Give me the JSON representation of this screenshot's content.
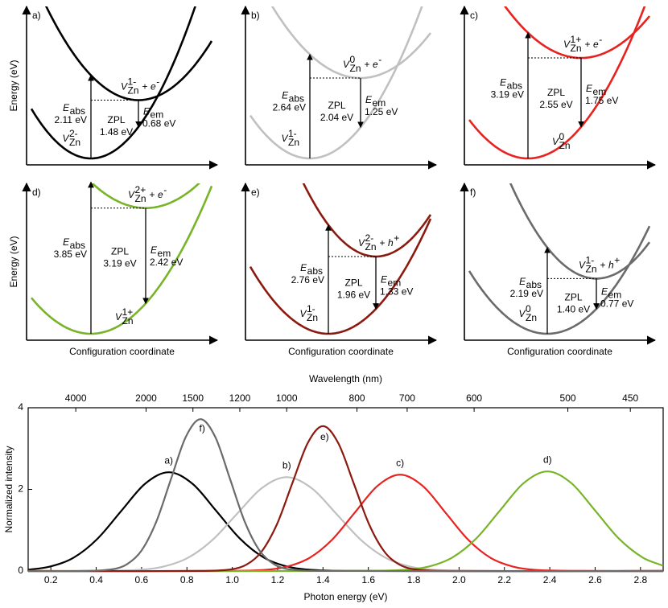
{
  "panels": [
    {
      "label": "a)",
      "color": "#000000",
      "y_label": "Energy (eV)",
      "ground": {
        "symbol": "V",
        "sub": "Zn",
        "sup": "2-"
      },
      "excited": {
        "symbol": "V",
        "sub": "Zn",
        "sup": "1-",
        "plus": "+",
        "carrier": "e",
        "carrier_sup": "-"
      },
      "abs": {
        "symbol": "E",
        "sub": "abs",
        "value": 2.11,
        "label": "2.11 eV"
      },
      "zpl": {
        "symbol": "ZPL",
        "value": 1.48,
        "label": "1.48 eV"
      },
      "em": {
        "symbol": "E",
        "sub": "em",
        "value": 0.68,
        "label": "0.68 eV"
      }
    },
    {
      "label": "b)",
      "color": "#c0c0c0",
      "ground": {
        "symbol": "V",
        "sub": "Zn",
        "sup": "1-"
      },
      "excited": {
        "symbol": "V",
        "sub": "Zn",
        "sup": "0",
        "plus": "+",
        "carrier": "e",
        "carrier_sup": "-"
      },
      "abs": {
        "symbol": "E",
        "sub": "abs",
        "value": 2.64,
        "label": "2.64 eV"
      },
      "zpl": {
        "symbol": "ZPL",
        "value": 2.04,
        "label": "2.04 eV"
      },
      "em": {
        "symbol": "E",
        "sub": "em",
        "value": 1.25,
        "label": "1.25 eV"
      }
    },
    {
      "label": "c)",
      "color": "#e8221e",
      "ground": {
        "symbol": "V",
        "sub": "Zn",
        "sup": "0"
      },
      "excited": {
        "symbol": "V",
        "sub": "Zn",
        "sup": "1+",
        "plus": "+",
        "carrier": "e",
        "carrier_sup": "-"
      },
      "abs": {
        "symbol": "E",
        "sub": "abs",
        "value": 3.19,
        "label": "3.19 eV"
      },
      "zpl": {
        "symbol": "ZPL",
        "value": 2.55,
        "label": "2.55 eV"
      },
      "em": {
        "symbol": "E",
        "sub": "em",
        "value": 1.75,
        "label": "1.75 eV"
      }
    },
    {
      "label": "d)",
      "color": "#78b428",
      "y_label": "Energy (eV)",
      "x_label": "Configuration coordinate",
      "ground": {
        "symbol": "V",
        "sub": "Zn",
        "sup": "1+"
      },
      "excited": {
        "symbol": "V",
        "sub": "Zn",
        "sup": "2+",
        "plus": "+",
        "carrier": "e",
        "carrier_sup": "-"
      },
      "abs": {
        "symbol": "E",
        "sub": "abs",
        "value": 3.85,
        "label": "3.85 eV"
      },
      "zpl": {
        "symbol": "ZPL",
        "value": 3.19,
        "label": "3.19 eV"
      },
      "em": {
        "symbol": "E",
        "sub": "em",
        "value": 2.42,
        "label": "2.42 eV"
      }
    },
    {
      "label": "e)",
      "color": "#8b1a10",
      "x_label": "Configuration coordinate",
      "ground": {
        "symbol": "V",
        "sub": "Zn",
        "sup": "1-"
      },
      "excited": {
        "symbol": "V",
        "sub": "Zn",
        "sup": "2-",
        "plus": "+",
        "carrier": "h",
        "carrier_sup": "+"
      },
      "abs": {
        "symbol": "E",
        "sub": "abs",
        "value": 2.76,
        "label": "2.76 eV"
      },
      "zpl": {
        "symbol": "ZPL",
        "value": 1.96,
        "label": "1.96 eV"
      },
      "em": {
        "symbol": "E",
        "sub": "em",
        "value": 1.33,
        "label": "1.33 eV"
      }
    },
    {
      "label": "f)",
      "color": "#6b6b6b",
      "x_label": "Configuration coordinate",
      "ground": {
        "symbol": "V",
        "sub": "Zn",
        "sup": "0"
      },
      "excited": {
        "symbol": "V",
        "sub": "Zn",
        "sup": "1-",
        "plus": "+",
        "carrier": "h",
        "carrier_sup": "+"
      },
      "abs": {
        "symbol": "E",
        "sub": "abs",
        "value": 2.19,
        "label": "2.19 eV"
      },
      "zpl": {
        "symbol": "ZPL",
        "value": 1.4,
        "label": "1.40 eV"
      },
      "em": {
        "symbol": "E",
        "sub": "em",
        "value": 0.77,
        "label": "0.77 eV"
      }
    }
  ],
  "chart_data": {
    "type": "line",
    "x_label": "Photon energy (eV)",
    "y_label": "Normalized intensity",
    "x2_label": "Wavelength (nm)",
    "xlim": [
      0.1,
      2.9
    ],
    "ylim": [
      0,
      4
    ],
    "xticks": [
      0.2,
      0.4,
      0.6,
      0.8,
      {
        "value": 1,
        "label": "1.0"
      },
      1.2,
      1.4,
      1.6,
      1.8,
      {
        "value": 2,
        "label": "2.0"
      },
      2.2,
      2.4,
      2.6,
      2.8
    ],
    "yticks": [
      0,
      2,
      4
    ],
    "x2ticks": [
      4000,
      2000,
      1500,
      1200,
      1000,
      800,
      700,
      600,
      500,
      450
    ],
    "series": [
      {
        "name": "a)",
        "color": "#000000",
        "x": [
          0.1,
          0.195,
          0.3,
          0.405,
          0.51,
          0.615,
          0.72,
          0.825,
          0.93,
          1.035,
          1.14,
          1.245,
          1.35,
          1.56,
          2.9
        ],
        "values": [
          0.031,
          0.106,
          0.327,
          0.786,
          1.468,
          2.136,
          2.42,
          2.136,
          1.468,
          0.786,
          0.327,
          0.106,
          0.027,
          0.001,
          0
        ]
      },
      {
        "name": "b)",
        "color": "#c0c0c0",
        "x": [
          0.1,
          0.36,
          0.58,
          0.69,
          0.8,
          0.91,
          1.02,
          1.13,
          1.24,
          1.35,
          1.46,
          1.57,
          1.68,
          1.79,
          1.9,
          2.12,
          2.9
        ],
        "values": [
          0,
          0.001,
          0.026,
          0.101,
          0.311,
          0.747,
          1.395,
          2.03,
          2.3,
          2.03,
          1.395,
          0.747,
          0.311,
          0.101,
          0.026,
          0.001,
          0
        ]
      },
      {
        "name": "c)",
        "color": "#e8221e",
        "x": [
          0.1,
          0.94,
          1.14,
          1.24,
          1.34,
          1.44,
          1.54,
          1.64,
          1.74,
          1.84,
          1.94,
          2.04,
          2.14,
          2.24,
          2.34,
          2.54,
          2.9
        ],
        "values": [
          0,
          0.001,
          0.026,
          0.104,
          0.319,
          0.766,
          1.431,
          2.083,
          2.36,
          2.083,
          1.431,
          0.766,
          0.319,
          0.104,
          0.026,
          0.001,
          0
        ]
      },
      {
        "name": "d)",
        "color": "#78b428",
        "x": [
          0.1,
          1.55,
          1.76,
          1.865,
          1.97,
          2.075,
          2.18,
          2.285,
          2.39,
          2.495,
          2.6,
          2.705,
          2.81,
          2.9
        ],
        "values": [
          0,
          0.001,
          0.027,
          0.107,
          0.33,
          0.792,
          1.48,
          2.153,
          2.44,
          2.153,
          1.48,
          0.792,
          0.33,
          0.128
        ]
      },
      {
        "name": "e)",
        "color": "#8b1a10",
        "x": [
          0.1,
          0.86,
          0.995,
          1.0625,
          1.13,
          1.1975,
          1.265,
          1.3325,
          1.4,
          1.4675,
          1.535,
          1.6025,
          1.67,
          1.7375,
          1.805,
          1.94,
          2.9
        ],
        "values": [
          0,
          0.001,
          0.039,
          0.156,
          0.48,
          1.153,
          2.153,
          3.133,
          3.55,
          3.133,
          2.153,
          1.153,
          0.48,
          0.156,
          0.039,
          0.001,
          0
        ]
      },
      {
        "name": "f)",
        "color": "#6b6b6b",
        "x": [
          0.1,
          0.34,
          0.47,
          0.535,
          0.6,
          0.665,
          0.73,
          0.795,
          0.86,
          0.925,
          0.99,
          1.055,
          1.12,
          1.185,
          1.25,
          1.38,
          2.9
        ],
        "values": [
          0,
          0.001,
          0.041,
          0.163,
          0.503,
          1.208,
          2.256,
          3.283,
          3.72,
          3.283,
          2.256,
          1.208,
          0.503,
          0.163,
          0.041,
          0.001,
          0
        ]
      }
    ]
  }
}
